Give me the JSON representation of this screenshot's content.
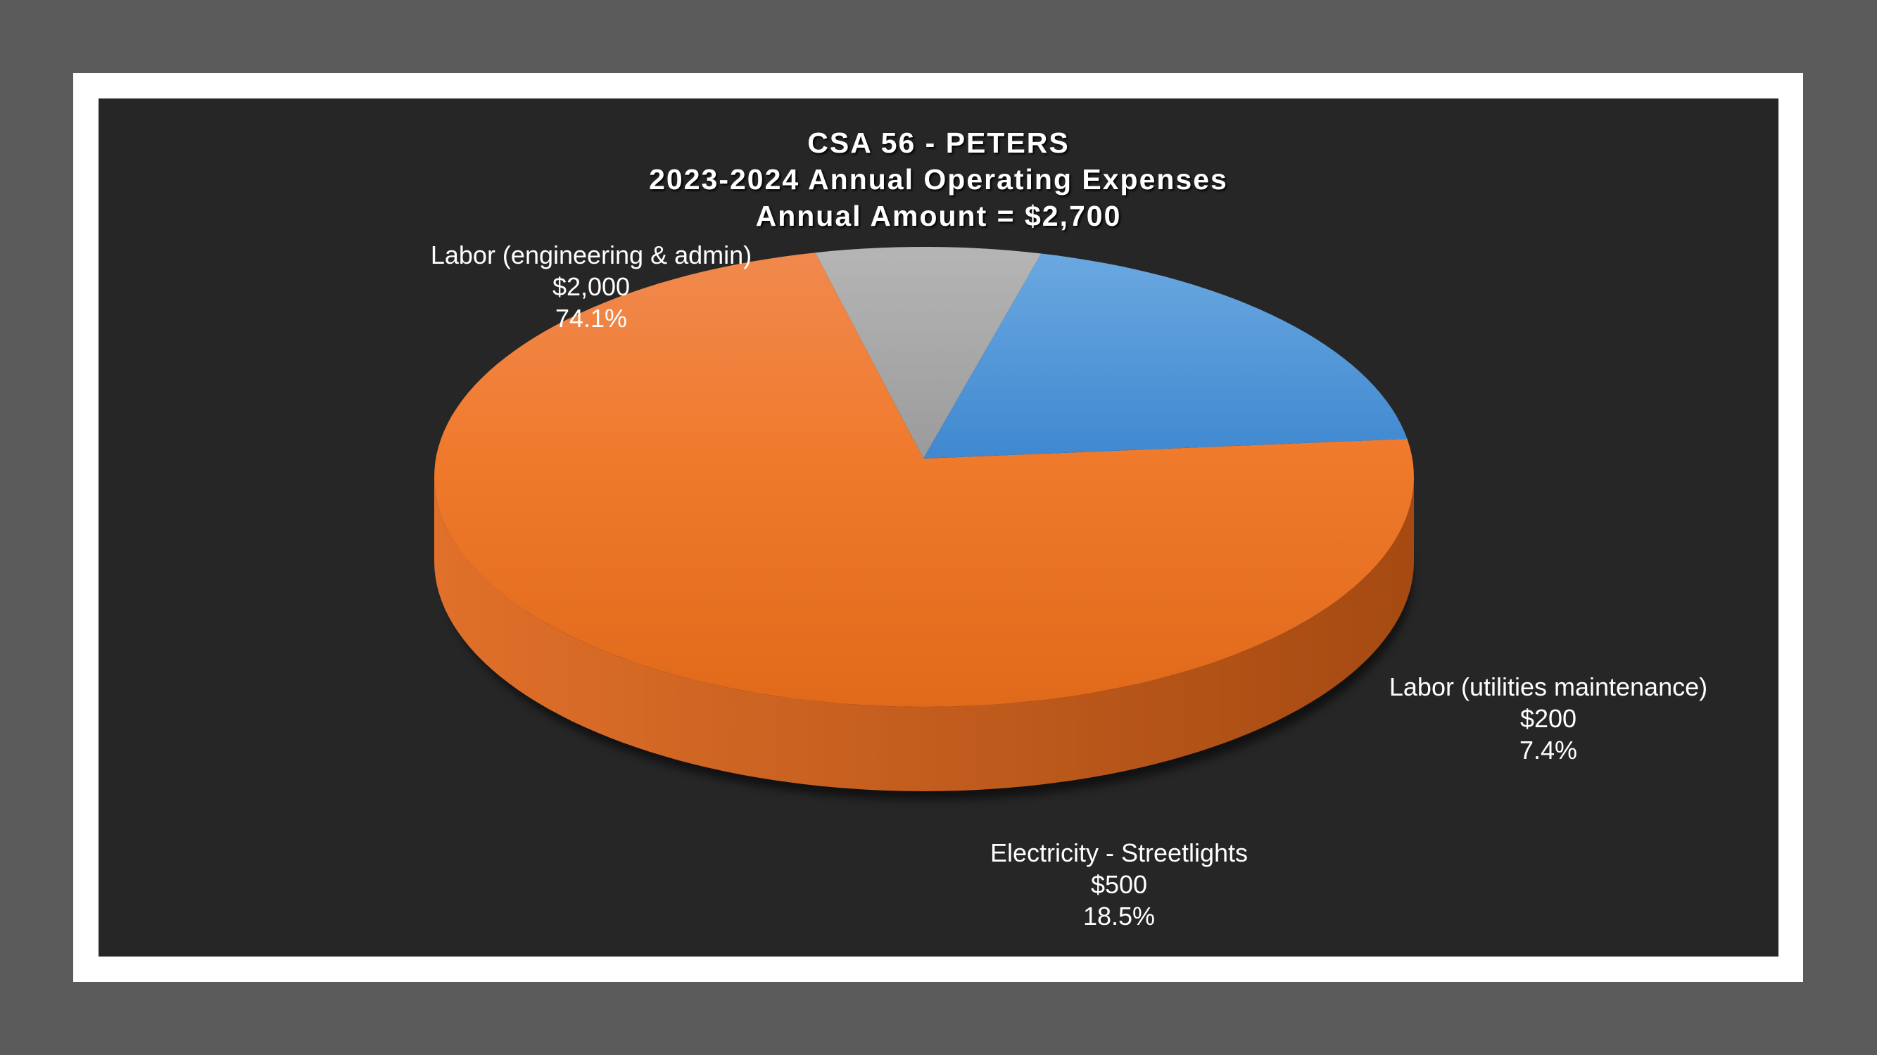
{
  "chart_data": {
    "type": "pie",
    "title_lines": [
      "CSA 56 - PETERS",
      "2023-2024 Annual Operating Expenses",
      "Annual Amount = $2,700"
    ],
    "slices": [
      {
        "name": "Labor (engineering & admin)",
        "value": 2000,
        "value_label": "$2,000",
        "percent_label": "74.1%",
        "color": "#f07a2c"
      },
      {
        "name": "Labor (utilities maintenance)",
        "value": 200,
        "value_label": "$200",
        "percent_label": "7.4%",
        "color": "#a6a6a6"
      },
      {
        "name": "Electricity - Streetlights",
        "value": 500,
        "value_label": "$500",
        "percent_label": "18.5%",
        "color": "#4f91d6"
      }
    ],
    "style": "3d-exploded-perspective",
    "legend": "none",
    "background": "#262626"
  }
}
